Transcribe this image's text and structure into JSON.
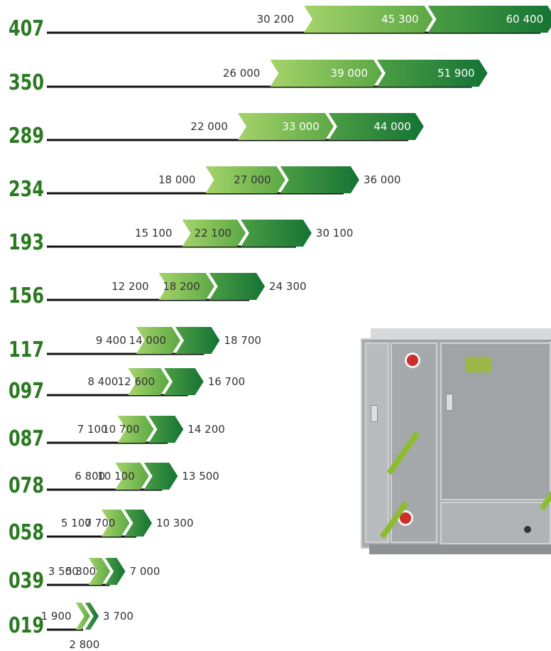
{
  "colors": {
    "accent": "#2b7a22",
    "light_green": "#8cc63f",
    "dark_green": "#1c7a3a",
    "line": "#111111",
    "text": "#333333"
  },
  "chart_data": {
    "type": "bar",
    "categories": [
      "407",
      "350",
      "289",
      "234",
      "193",
      "156",
      "117",
      "097",
      "087",
      "078",
      "058",
      "039",
      "019"
    ],
    "series": [
      {
        "values": [
          30200,
          26000,
          22000,
          18000,
          15100,
          12200,
          9400,
          8400,
          7100,
          6800,
          5100,
          3500,
          1900
        ]
      },
      {
        "values": [
          45300,
          39000,
          33000,
          27000,
          22100,
          18200,
          14000,
          12600,
          10700,
          10100,
          7700,
          5300,
          2800
        ]
      },
      {
        "values": [
          60400,
          51900,
          44000,
          36000,
          30100,
          24300,
          18700,
          16700,
          14200,
          13500,
          10300,
          7000,
          3700
        ]
      }
    ],
    "labels_low": [
      "30 200",
      "26 000",
      "22 000",
      "18 000",
      "15 100",
      "12 200",
      "9 400",
      "8 400",
      "7 100",
      "6 800",
      "5 100",
      "3 500",
      "1 900"
    ],
    "labels_mid": [
      "45 300",
      "39 000",
      "33 000",
      "27 000",
      "22 100",
      "18 200",
      "14 000",
      "12 600",
      "10 700",
      "10 100",
      "7 700",
      "5 300",
      "2 800"
    ],
    "labels_high": [
      "60 400",
      "51 900",
      "44 000",
      "36 000",
      "30 100",
      "24 300",
      "18 700",
      "16 700",
      "14 200",
      "13 500",
      "10 300",
      "7 000",
      "3 700"
    ],
    "title": "",
    "xlabel": "",
    "ylabel": "",
    "grid": false
  }
}
